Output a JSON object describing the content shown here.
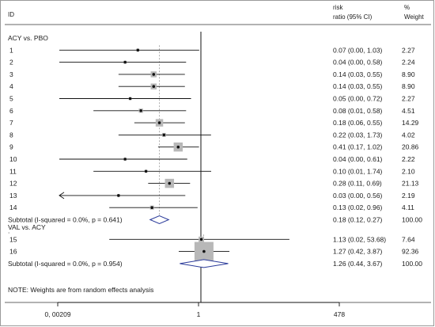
{
  "chart_data": {
    "type": "forest",
    "header": {
      "id": "ID",
      "risk_line1": "risk",
      "risk_line2": "ratio (95% CI)",
      "weight_line1": "%",
      "weight_line2": "Weight"
    },
    "scale": "log",
    "xlim": [
      0.00209,
      478
    ],
    "axis_ticks": [
      {
        "value": 0.00209,
        "label": "0, 00209"
      },
      {
        "value": 1,
        "label": "1"
      },
      {
        "value": 478,
        "label": "478"
      }
    ],
    "null_line": 1,
    "groups": [
      {
        "label": "ACY vs. PBO",
        "studies": [
          {
            "id": "1",
            "rr": 0.07,
            "lo": 0.0,
            "hi": 1.03,
            "ci": "0.07 (0.00, 1.03)",
            "weight": "2.27"
          },
          {
            "id": "2",
            "rr": 0.04,
            "lo": 0.0,
            "hi": 0.58,
            "ci": "0.04 (0.00, 0.58)",
            "weight": "2.24"
          },
          {
            "id": "3",
            "rr": 0.14,
            "lo": 0.03,
            "hi": 0.55,
            "ci": "0.14 (0.03, 0.55)",
            "weight": "8.90"
          },
          {
            "id": "4",
            "rr": 0.14,
            "lo": 0.03,
            "hi": 0.55,
            "ci": "0.14 (0.03, 0.55)",
            "weight": "8.90"
          },
          {
            "id": "5",
            "rr": 0.05,
            "lo": 0.0,
            "hi": 0.72,
            "ci": "0.05 (0.00, 0.72)",
            "weight": "2.27"
          },
          {
            "id": "6",
            "rr": 0.08,
            "lo": 0.01,
            "hi": 0.58,
            "ci": "0.08 (0.01, 0.58)",
            "weight": "4.51"
          },
          {
            "id": "7",
            "rr": 0.18,
            "lo": 0.06,
            "hi": 0.55,
            "ci": "0.18 (0.06, 0.55)",
            "weight": "14.29"
          },
          {
            "id": "8",
            "rr": 0.22,
            "lo": 0.03,
            "hi": 1.73,
            "ci": "0.22 (0.03, 1.73)",
            "weight": "4.02"
          },
          {
            "id": "9",
            "rr": 0.41,
            "lo": 0.17,
            "hi": 1.02,
            "ci": "0.41 (0.17, 1.02)",
            "weight": "20.86"
          },
          {
            "id": "10",
            "rr": 0.04,
            "lo": 0.0,
            "hi": 0.61,
            "ci": "0.04 (0.00, 0.61)",
            "weight": "2.22"
          },
          {
            "id": "11",
            "rr": 0.1,
            "lo": 0.01,
            "hi": 1.74,
            "ci": "0.10 (0.01, 1.74)",
            "weight": "2.10"
          },
          {
            "id": "12",
            "rr": 0.28,
            "lo": 0.11,
            "hi": 0.69,
            "ci": "0.28 (0.11, 0.69)",
            "weight": "21.13"
          },
          {
            "id": "13",
            "rr": 0.03,
            "lo": 0.0,
            "hi": 0.56,
            "ci": "0.03 (0.00, 0.56)",
            "weight": "2.19"
          },
          {
            "id": "14",
            "rr": 0.13,
            "lo": 0.02,
            "hi": 0.96,
            "ci": "0.13 (0.02, 0.96)",
            "weight": "4.11"
          }
        ],
        "subtotal": {
          "label": "Subtotal  (I-squared = 0.0%, p = 0.641)",
          "rr": 0.18,
          "lo": 0.12,
          "hi": 0.27,
          "ci": "0.18 (0.12, 0.27)",
          "weight": "100.00"
        }
      },
      {
        "label": "VAL vs. ACY",
        "studies": [
          {
            "id": "15",
            "rr": 1.13,
            "lo": 0.02,
            "hi": 53.68,
            "ci": "1.13 (0.02, 53.68)",
            "weight": "7.64"
          },
          {
            "id": "16",
            "rr": 1.27,
            "lo": 0.42,
            "hi": 3.87,
            "ci": "1.27 (0.42, 3.87)",
            "weight": "92.36"
          }
        ],
        "subtotal": {
          "label": "Subtotal  (I-squared = 0.0%, p = 0.954)",
          "rr": 1.26,
          "lo": 0.44,
          "hi": 3.67,
          "ci": "1.26 (0.44, 3.67)",
          "weight": "100.00"
        }
      }
    ],
    "dot_between_groups": ".",
    "note": "NOTE: Weights are from random effects analysis"
  }
}
